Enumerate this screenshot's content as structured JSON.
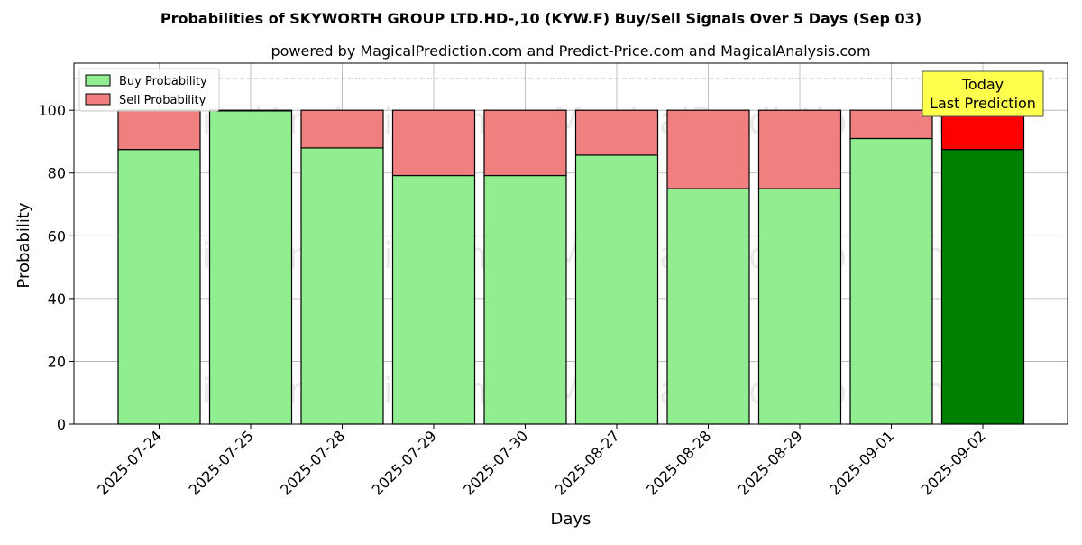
{
  "chart_data": {
    "type": "bar",
    "stacked": true,
    "title": "Probabilities of SKYWORTH GROUP LTD.HD-,10 (KYW.F) Buy/Sell Signals Over 5 Days (Sep 03)",
    "subtitle": "powered by MagicalPrediction.com and Predict-Price.com and MagicalAnalysis.com",
    "xlabel": "Days",
    "ylabel": "Probability",
    "ylim": [
      0,
      115
    ],
    "yticks": [
      0,
      20,
      40,
      60,
      80,
      100
    ],
    "grid": true,
    "legend_position": "top-left",
    "categories": [
      "2025-07-24",
      "2025-07-25",
      "2025-07-28",
      "2025-07-29",
      "2025-07-30",
      "2025-08-27",
      "2025-08-28",
      "2025-08-29",
      "2025-09-01",
      "2025-09-02"
    ],
    "series": [
      {
        "name": "Buy Probability",
        "values": [
          87.5,
          99.8,
          88.0,
          79.2,
          79.2,
          85.7,
          75.0,
          75.0,
          91.0,
          87.5
        ],
        "color": "#90ee90",
        "highlight_color": "#008000"
      },
      {
        "name": "Sell Probability",
        "values": [
          12.5,
          0.2,
          12.0,
          20.8,
          20.8,
          14.3,
          25.0,
          25.0,
          9.0,
          12.5
        ],
        "color": "#f08080",
        "highlight_color": "#ff0000"
      }
    ],
    "highlight_index": 9,
    "reference_line": {
      "value": 110,
      "style": "dashed",
      "color": "#808080"
    },
    "annotation": {
      "lines": [
        "Today",
        "Last Prediction"
      ],
      "background": "#ffff4d"
    },
    "watermarks": [
      "MagicalAnalysis.com",
      "MagicalPrediction.com"
    ]
  }
}
